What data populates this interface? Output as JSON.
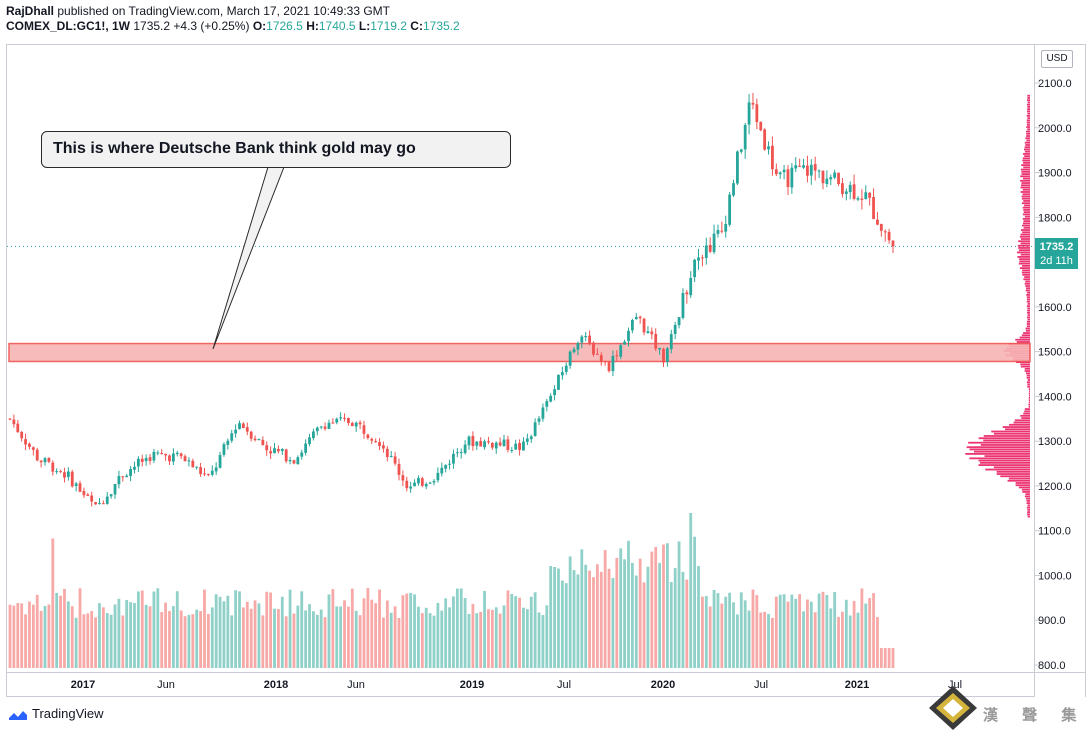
{
  "header": {
    "author": "RajDhall",
    "published_text": "published on TradingView.com, March 17, 2021 10:49:33 GMT",
    "symbol": "COMEX_DL:GC1!, 1W",
    "last": "1735.2",
    "change": "+4.3 (+0.25%)",
    "o_label": "O:",
    "o_value": "1726.5",
    "h_label": "H:",
    "h_value": "1740.5",
    "l_label": "L:",
    "l_value": "1719.2",
    "c_label": "C:",
    "c_value": "1735.2"
  },
  "axis": {
    "currency": "USD",
    "price_tag": "1735.2",
    "countdown": "2d 11h"
  },
  "annotation": {
    "text": "This is where Deutsche Bank think gold may go",
    "zone_low": 1478,
    "zone_high": 1518
  },
  "footer": {
    "brand": "TradingView",
    "watermark": "漢 聲 集 團"
  },
  "colors": {
    "up": "#26a69a",
    "down": "#ef5350",
    "volume_up": "#8fd1c8",
    "volume_down": "#f7a9a7",
    "profile": "#e91e63",
    "zone_fill": "#f8b4b4",
    "zone_stroke": "#ef5350"
  },
  "chart_data": {
    "type": "candlestick",
    "instrument": "COMEX_DL:GC1!",
    "timeframe": "1W",
    "y_unit": "USD",
    "ylim": [
      780,
      2130
    ],
    "yticks": [
      800,
      900,
      1000,
      1100,
      1200,
      1300,
      1400,
      1500,
      1600,
      1700,
      1800,
      1900,
      2000,
      2100
    ],
    "xticks": [
      "2017",
      "Jun",
      "2018",
      "Jun",
      "2019",
      "Jul",
      "2020",
      "Jul",
      "2021",
      "Jul"
    ],
    "last_price": 1735.2,
    "price_path": [
      [
        "2016-11",
        1350
      ],
      [
        "2016-12",
        1260
      ],
      [
        "2017-01",
        1225
      ],
      [
        "2017-01-end",
        1150
      ],
      [
        "2017-03",
        1230
      ],
      [
        "2017-04",
        1270
      ],
      [
        "2017-06",
        1265
      ],
      [
        "2017-07",
        1215
      ],
      [
        "2017-09",
        1345
      ],
      [
        "2017-10",
        1285
      ],
      [
        "2017-12",
        1260
      ],
      [
        "2018-01",
        1340
      ],
      [
        "2018-04",
        1345
      ],
      [
        "2018-06",
        1300
      ],
      [
        "2018-08",
        1195
      ],
      [
        "2018-10",
        1225
      ],
      [
        "2019-01",
        1300
      ],
      [
        "2019-03",
        1295
      ],
      [
        "2019-05",
        1285
      ],
      [
        "2019-06",
        1400
      ],
      [
        "2019-09",
        1540
      ],
      [
        "2019-11",
        1465
      ],
      [
        "2020-01",
        1580
      ],
      [
        "2020-03",
        1480
      ],
      [
        "2020-04",
        1700
      ],
      [
        "2020-06",
        1770
      ],
      [
        "2020-08",
        2060
      ],
      [
        "2020-09",
        1880
      ],
      [
        "2020-11",
        1910
      ],
      [
        "2020-12",
        1880
      ],
      [
        "2021-01",
        1850
      ],
      [
        "2021-03",
        1735.2
      ]
    ],
    "volume_profile_range": [
      1130,
      2070
    ]
  }
}
